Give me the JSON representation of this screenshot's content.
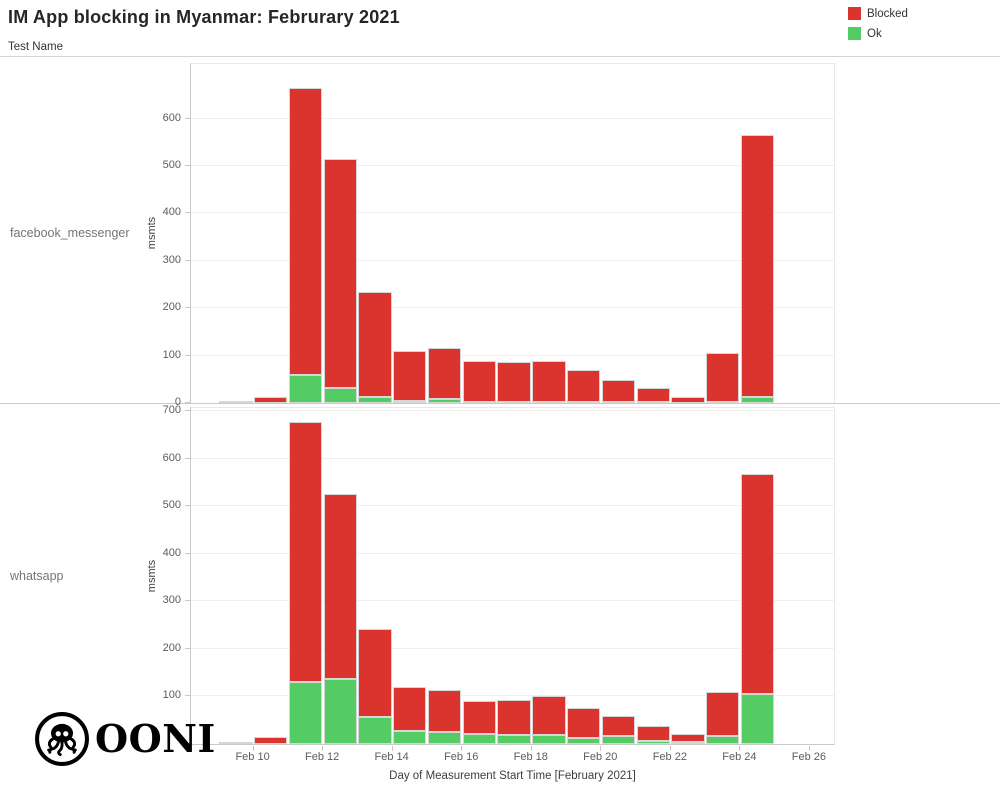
{
  "header": {
    "title": "IM App blocking in Myanmar: Februrary 2021",
    "facet_header": "Test Name"
  },
  "legend": {
    "items": [
      {
        "key": "blocked",
        "label": "Blocked",
        "color": "#db332e"
      },
      {
        "key": "ok",
        "label": "Ok",
        "color": "#55cb64"
      }
    ]
  },
  "axes": {
    "y_title": "msmts",
    "x_title": "Day of Measurement Start Time [February 2021]"
  },
  "logo": {
    "text": "OONI"
  },
  "chart_data": {
    "type": "bar",
    "stacked": true,
    "title": "IM App blocking in Myanmar: Februrary 2021",
    "xlabel": "Day of Measurement Start Time [February 2021]",
    "ylabel": "msmts",
    "legend_position": "top-right",
    "legend": [
      "Blocked",
      "Ok"
    ],
    "colors": {
      "blocked": "#db332e",
      "ok": "#55cb64",
      "failure": "#d2d2d2"
    },
    "stack_order": [
      "ok",
      "blocked",
      "failure"
    ],
    "x": {
      "dates": [
        "Feb 9",
        "Feb 10",
        "Feb 11",
        "Feb 12",
        "Feb 13",
        "Feb 14",
        "Feb 15",
        "Feb 16",
        "Feb 17",
        "Feb 18",
        "Feb 19",
        "Feb 20",
        "Feb 21",
        "Feb 22",
        "Feb 23",
        "Feb 24"
      ],
      "days": [
        9,
        10,
        11,
        12,
        13,
        14,
        15,
        16,
        17,
        18,
        19,
        20,
        21,
        22,
        23,
        24
      ],
      "domain": [
        8.2,
        26.75
      ],
      "ticks": [
        {
          "day": 10,
          "label": "Feb 10"
        },
        {
          "day": 12,
          "label": "Feb 12"
        },
        {
          "day": 14,
          "label": "Feb 14"
        },
        {
          "day": 16,
          "label": "Feb 16"
        },
        {
          "day": 18,
          "label": "Feb 18"
        },
        {
          "day": 20,
          "label": "Feb 20"
        },
        {
          "day": 22,
          "label": "Feb 22"
        },
        {
          "day": 24,
          "label": "Feb 24"
        },
        {
          "day": 26,
          "label": "Feb 26"
        }
      ]
    },
    "facets": [
      {
        "test_name": "facebook_messenger",
        "ylim": [
          0,
          715
        ],
        "yticks": [
          0,
          100,
          200,
          300,
          400,
          500,
          600
        ],
        "series": {
          "blocked": [
            0,
            13,
            605,
            484,
            223,
            104,
            107,
            85,
            83,
            85,
            67,
            46,
            30,
            11,
            103,
            552
          ],
          "ok": [
            0,
            0,
            60,
            31,
            12,
            5,
            9,
            3,
            3,
            3,
            3,
            2,
            2,
            1,
            2,
            13
          ],
          "failure": [
            2,
            0,
            0,
            0,
            0,
            0,
            0,
            0,
            0,
            0,
            0,
            0,
            0,
            0,
            0,
            0
          ]
        }
      },
      {
        "test_name": "whatsapp",
        "ylim": [
          0,
          707
        ],
        "yticks": [
          100,
          200,
          300,
          400,
          500,
          600,
          700
        ],
        "series": {
          "blocked": [
            0,
            15,
            548,
            391,
            186,
            92,
            87,
            68,
            73,
            82,
            62,
            41,
            32,
            16,
            93,
            462
          ],
          "ok": [
            0,
            0,
            130,
            136,
            56,
            28,
            26,
            22,
            20,
            18,
            13,
            17,
            6,
            5,
            16,
            106
          ],
          "failure": [
            2,
            0,
            0,
            0,
            0,
            0,
            0,
            0,
            0,
            0,
            0,
            0,
            0,
            0,
            0,
            0
          ]
        }
      }
    ]
  }
}
